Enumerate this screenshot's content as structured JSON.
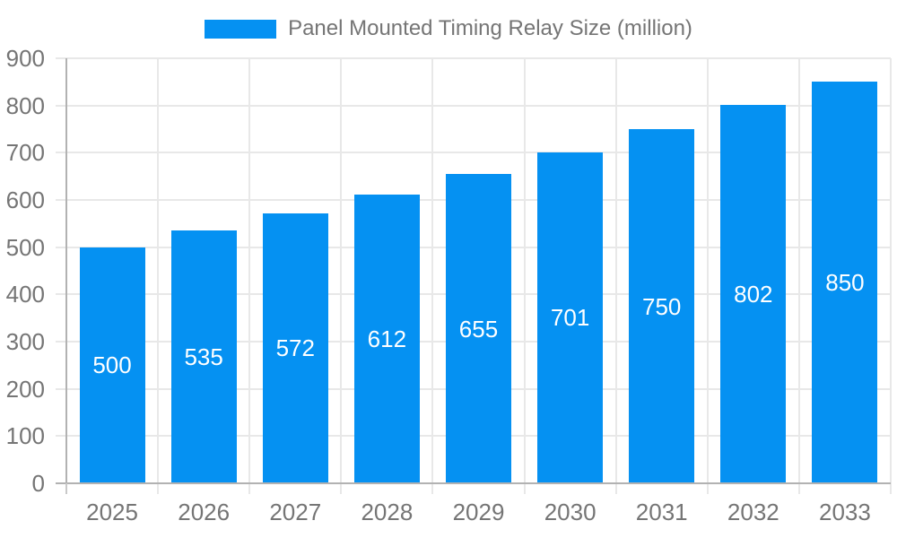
{
  "legend": {
    "title": "Panel Mounted Timing Relay Size (million)"
  },
  "colors": {
    "bar": "#0591F2",
    "bar_label": "#FFFFFF",
    "axis_text": "#757575",
    "grid_line": "#E8E8E8",
    "axis_line": "#B2B2B2",
    "background": "#FFFFFF"
  },
  "chart_data": {
    "type": "bar",
    "title": "Panel Mounted Timing Relay Size (million)",
    "categories": [
      "2025",
      "2026",
      "2027",
      "2028",
      "2029",
      "2030",
      "2031",
      "2032",
      "2033"
    ],
    "values": [
      500,
      535,
      572,
      612,
      655,
      701,
      750,
      802,
      850
    ],
    "series": [
      {
        "name": "Panel Mounted Timing Relay Size (million)",
        "values": [
          500,
          535,
          572,
          612,
          655,
          701,
          750,
          802,
          850
        ]
      }
    ],
    "xlabel": "",
    "ylabel": "",
    "ylim": [
      0,
      900
    ],
    "yticks": [
      0,
      100,
      200,
      300,
      400,
      500,
      600,
      700,
      800,
      900
    ],
    "grid": true,
    "legend_position": "top",
    "bar_value_labels_visible": true
  }
}
